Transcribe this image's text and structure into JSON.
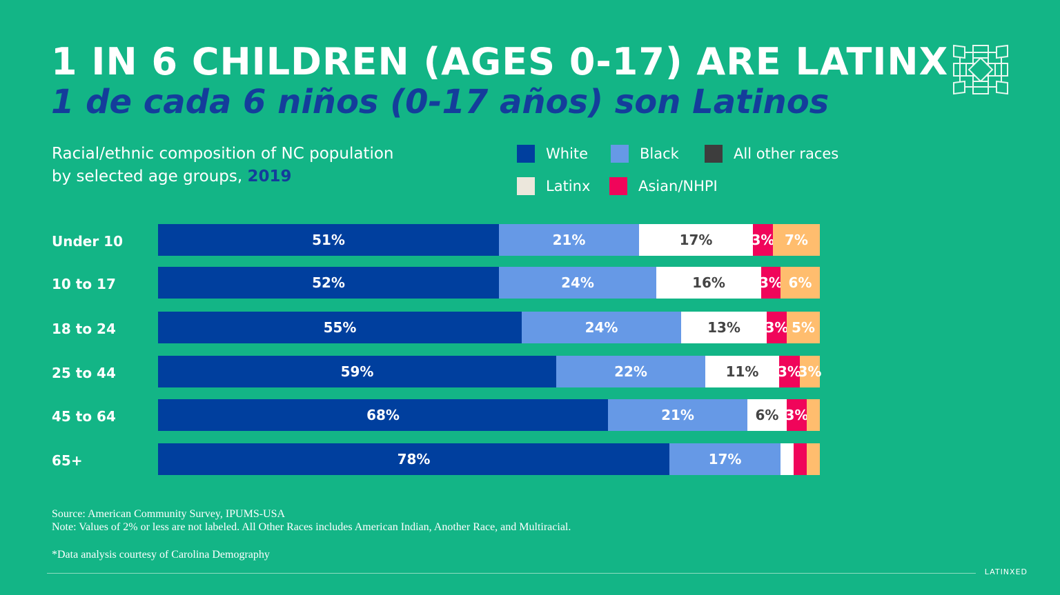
{
  "header": {
    "title": "1 IN 6 CHILDREN (AGES 0-17) ARE LATINX",
    "subtitle": "1 de cada 6 niños (0-17 años) son Latinos"
  },
  "description": {
    "line1": "Racial/ethnic composition of NC population",
    "line2": "by selected age groups, ",
    "year": "2019"
  },
  "chart_data": {
    "type": "bar",
    "orientation": "horizontal",
    "stacked": true,
    "unit": "%",
    "title": "Racial/ethnic composition of NC population by selected age groups, 2019",
    "categories": [
      "Under 10",
      "10 to 17",
      "18 to 24",
      "25 to 44",
      "45 to 64",
      "65+"
    ],
    "series": [
      {
        "name": "White",
        "color": "#003f9e",
        "legend_color": "#003f9e",
        "label_color": "#ffffff",
        "values": [
          51,
          52,
          55,
          59,
          68,
          78
        ]
      },
      {
        "name": "Black",
        "color": "#6699e6",
        "legend_color": "#6699e6",
        "label_color": "#ffffff",
        "values": [
          21,
          24,
          24,
          22,
          21,
          17
        ]
      },
      {
        "name": "Latinx",
        "color": "#ffffff",
        "legend_color": "#ece7dc",
        "label_color": "#444444",
        "values": [
          17,
          16,
          13,
          11,
          6,
          2
        ]
      },
      {
        "name": "Asian/NHPI",
        "color": "#f0055a",
        "legend_color": "#f0055a",
        "label_color": "#ffffff",
        "values": [
          3,
          3,
          3,
          3,
          3,
          2
        ]
      },
      {
        "name": "All other races",
        "color": "#ffbd6e",
        "legend_color": "#3d3d3d",
        "label_color": "#ffffff",
        "values": [
          7,
          6,
          5,
          3,
          2,
          2
        ]
      }
    ],
    "label_threshold": 2,
    "legend_position": "top-right"
  },
  "footer": {
    "source": "Source: American Community Survey, IPUMS-USA",
    "note": "Note: Values of 2% or less are not labeled. All Other Races includes American Indian, Another Race, and Multiracial.",
    "credit": "*Data analysis courtesy of Carolina Demography",
    "brand": "LATINXED"
  }
}
